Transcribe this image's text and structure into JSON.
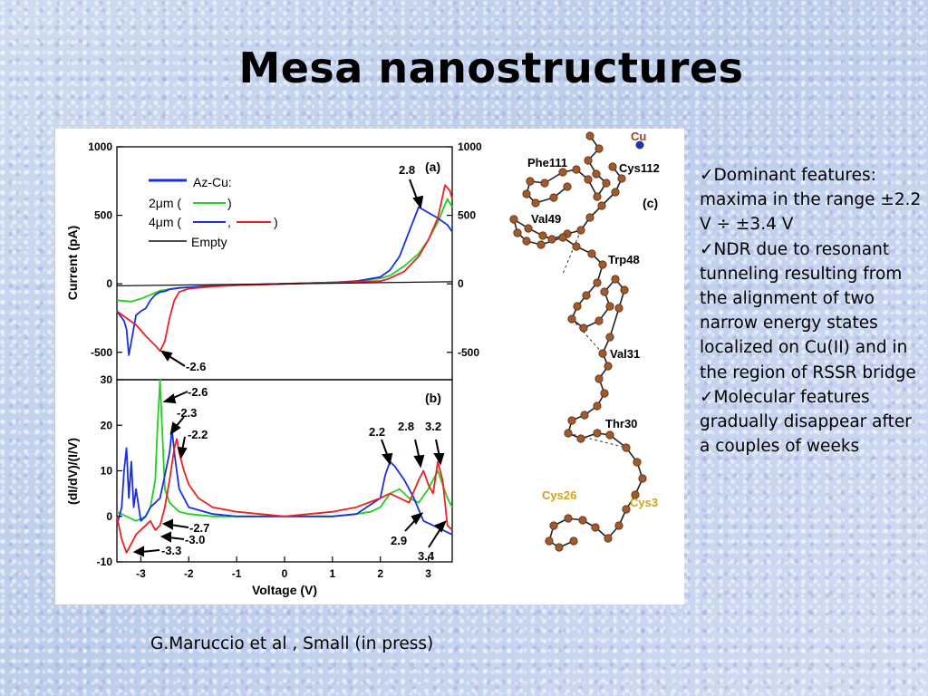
{
  "slide": {
    "title": "Mesa nanostructures",
    "citation": "G.Maruccio et al , Small (in press)"
  },
  "bullets": [
    {
      "mark": "✓",
      "text": "Dominant features: maxima in the range ±2.2 V ÷ ±3.4 V"
    },
    {
      "mark": "✓",
      "text": "NDR due to resonant tunneling resulting from the alignment of two narrow energy states localized on Cu(II) and in the region of RSSR bridge"
    },
    {
      "mark": "✓",
      "text": "Molecular features gradually disappear after a couples of weeks"
    }
  ],
  "colors": {
    "blue": "#1a2fe0",
    "green": "#22d022",
    "red": "#ee2020",
    "black": "#111111",
    "atom": "#a05a2c",
    "cu": "#2233aa",
    "cys_label": "#d4a017"
  },
  "chart_data": [
    {
      "type": "line",
      "panel_label": "(a)",
      "xlabel": "",
      "ylabel": "Current (pA)",
      "xlim": [
        -3.5,
        3.5
      ],
      "ylim": [
        -700,
        1000
      ],
      "yticks": [
        "1000",
        "500",
        "0",
        "-500"
      ],
      "right_yticks": [
        "1000",
        "500",
        "0",
        "-500"
      ],
      "legend": {
        "title": "Az-Cu:",
        "entries": [
          "2μm (",
          ")",
          "4μm (",
          ",",
          ")",
          "Empty"
        ]
      },
      "annotations": [
        "2.8",
        "-2.6"
      ],
      "series": [
        {
          "name": "2μm",
          "color": "green",
          "x": [
            -3.5,
            -3.2,
            -3.0,
            -2.8,
            -2.6,
            -2.4,
            -2.2,
            -2.0,
            -1.5,
            -1.0,
            0,
            1.0,
            1.5,
            2.0,
            2.2,
            2.5,
            2.8,
            3.0,
            3.2,
            3.4,
            3.5
          ],
          "y": [
            -120,
            -130,
            -110,
            -80,
            -50,
            -40,
            -30,
            -25,
            -15,
            -10,
            0,
            10,
            20,
            40,
            60,
            130,
            220,
            320,
            450,
            620,
            560
          ]
        },
        {
          "name": "4μm (blue)",
          "color": "blue",
          "x": [
            -3.5,
            -3.35,
            -3.3,
            -3.25,
            -3.1,
            -3.0,
            -2.9,
            -2.8,
            -2.7,
            -2.6,
            -2.5,
            -2.4,
            -2.2,
            -2.0,
            -1.5,
            -1.0,
            0,
            1.0,
            1.5,
            2.0,
            2.2,
            2.4,
            2.6,
            2.8,
            3.0,
            3.2,
            3.4,
            3.5
          ],
          "y": [
            -200,
            -270,
            -330,
            -520,
            -230,
            -200,
            -180,
            -120,
            -80,
            -60,
            -55,
            -40,
            -30,
            -25,
            -15,
            -10,
            0,
            10,
            20,
            50,
            100,
            200,
            380,
            560,
            520,
            480,
            430,
            380
          ]
        },
        {
          "name": "4μm (red)",
          "color": "red",
          "x": [
            -3.5,
            -3.3,
            -3.1,
            -2.9,
            -2.7,
            -2.6,
            -2.5,
            -2.4,
            -2.3,
            -2.2,
            -2.0,
            -1.5,
            -1.0,
            0,
            1.0,
            1.5,
            2.0,
            2.2,
            2.5,
            2.8,
            3.0,
            3.2,
            3.35,
            3.45,
            3.5
          ],
          "y": [
            -200,
            -250,
            -300,
            -380,
            -450,
            -490,
            -420,
            -250,
            -120,
            -60,
            -35,
            -20,
            -10,
            0,
            10,
            15,
            20,
            40,
            90,
            200,
            320,
            480,
            720,
            680,
            620
          ]
        },
        {
          "name": "Empty",
          "color": "black",
          "x": [
            -3.5,
            0,
            3.5
          ],
          "y": [
            -15,
            0,
            15
          ]
        }
      ]
    },
    {
      "type": "line",
      "panel_label": "(b)",
      "xlabel": "Voltage (V)",
      "ylabel": "(dI/dV)/(I/V)",
      "xlim": [
        -3.5,
        3.5
      ],
      "ylim": [
        -10,
        30
      ],
      "xticks": [
        "-3",
        "-2",
        "-1",
        "0",
        "1",
        "2",
        "3"
      ],
      "yticks": [
        "30",
        "20",
        "10",
        "0",
        "-10"
      ],
      "annotations": [
        "-2.6",
        "-2.3",
        "-2.2",
        "2.2",
        "2.8",
        "3.2",
        "-2.7",
        "-3.0",
        "-3.3",
        "2.9",
        "3.4"
      ],
      "series": [
        {
          "name": "2μm",
          "color": "green",
          "x": [
            -3.5,
            -3.3,
            -3.1,
            -2.9,
            -2.8,
            -2.7,
            -2.65,
            -2.6,
            -2.55,
            -2.5,
            -2.4,
            -2.3,
            -2.2,
            -2.0,
            -1.5,
            -1.0,
            0,
            1.0,
            1.5,
            1.8,
            2.0,
            2.2,
            2.4,
            2.6,
            2.8,
            3.0,
            3.2,
            3.4,
            3.5
          ],
          "y": [
            1,
            0,
            -1,
            0,
            2,
            8,
            20,
            30,
            18,
            6,
            3,
            2,
            1,
            0.5,
            0,
            0,
            0,
            0,
            0.5,
            1,
            2,
            5,
            6,
            4,
            3,
            6,
            10,
            4,
            2
          ]
        },
        {
          "name": "4μm (blue)",
          "color": "blue",
          "x": [
            -3.5,
            -3.4,
            -3.35,
            -3.3,
            -3.25,
            -3.2,
            -3.15,
            -3.1,
            -3.0,
            -2.9,
            -2.8,
            -2.7,
            -2.6,
            -2.5,
            -2.4,
            -2.35,
            -2.3,
            -2.2,
            -2.0,
            -1.5,
            -1.0,
            0,
            1.0,
            1.5,
            2.0,
            2.1,
            2.2,
            2.3,
            2.5,
            2.7,
            2.9,
            3.1,
            3.3,
            3.5
          ],
          "y": [
            -2,
            2,
            10,
            15,
            4,
            12,
            2,
            6,
            -1,
            0,
            2,
            3,
            4,
            9,
            14,
            19,
            14,
            6,
            2,
            0.5,
            0,
            0,
            0,
            0.5,
            4,
            9,
            12,
            11,
            8,
            4,
            -1,
            -2,
            -3,
            -4
          ]
        },
        {
          "name": "4μm (red)",
          "color": "red",
          "x": [
            -3.5,
            -3.4,
            -3.3,
            -3.2,
            -3.1,
            -3.0,
            -2.9,
            -2.8,
            -2.7,
            -2.6,
            -2.5,
            -2.4,
            -2.3,
            -2.25,
            -2.2,
            -2.1,
            -2.0,
            -1.8,
            -1.5,
            -1.0,
            0,
            1.0,
            1.5,
            2.0,
            2.2,
            2.4,
            2.6,
            2.8,
            2.9,
            3.0,
            3.1,
            3.2,
            3.3,
            3.4,
            3.5
          ],
          "y": [
            0,
            -5,
            -8,
            -6,
            -4,
            -3,
            -2,
            -1,
            -3,
            -2,
            2,
            8,
            15,
            17,
            14,
            10,
            7,
            4,
            2,
            1,
            0,
            1,
            2,
            4,
            5,
            4,
            3,
            8,
            10,
            7,
            5,
            12,
            8,
            -2,
            -3
          ]
        }
      ]
    }
  ],
  "structure": {
    "panel_label": "(c)",
    "residues": [
      "Cu",
      "Phe111",
      "Cys112",
      "Val49",
      "Trp48",
      "Val31",
      "Thr30",
      "Cys26",
      "Cys3"
    ]
  }
}
